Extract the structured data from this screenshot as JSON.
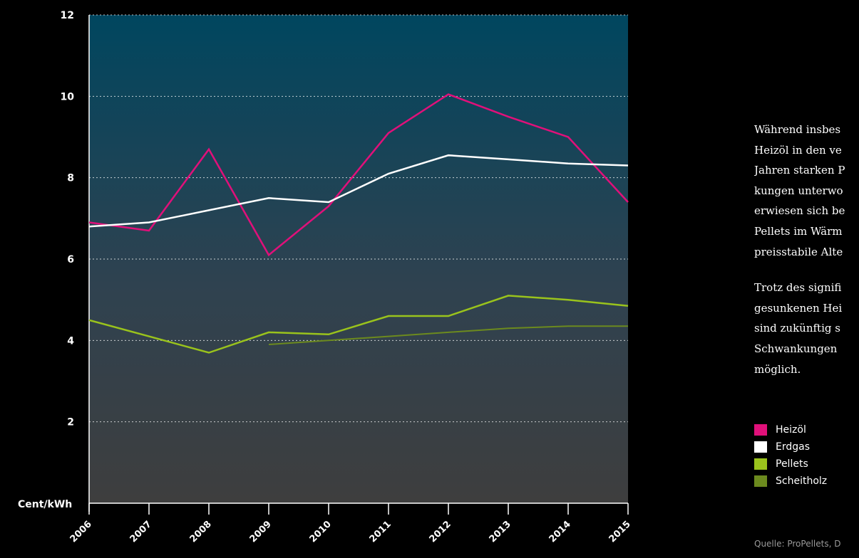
{
  "chart_data": {
    "type": "line",
    "ylabel": "Cent/kWh",
    "ylim": [
      0,
      12
    ],
    "yticks": [
      "2",
      "4",
      "6",
      "8",
      "10",
      "12"
    ],
    "x": [
      "2006",
      "2007",
      "2008",
      "2009",
      "2010",
      "2011",
      "2012",
      "2013",
      "2014",
      "2015"
    ],
    "grid": true,
    "series": [
      {
        "name": "Heizöl",
        "color": "#e0107a",
        "values": [
          6.9,
          6.7,
          8.7,
          6.1,
          7.3,
          9.1,
          10.05,
          9.5,
          9.0,
          7.4
        ]
      },
      {
        "name": "Erdgas",
        "color": "#ffffff",
        "values": [
          6.8,
          6.9,
          7.2,
          7.5,
          7.4,
          8.1,
          8.55,
          8.45,
          8.35,
          8.3
        ]
      },
      {
        "name": "Pellets",
        "color": "#9ac31c",
        "values": [
          4.5,
          4.1,
          3.7,
          4.2,
          4.15,
          4.6,
          4.6,
          5.1,
          5.0,
          4.85
        ]
      },
      {
        "name": "Scheitholz",
        "color": "#6c8a1e",
        "values": [
          null,
          null,
          null,
          3.9,
          4.0,
          4.1,
          4.2,
          4.3,
          4.35,
          4.35
        ]
      }
    ]
  },
  "text": {
    "para1": [
      "Während insbes",
      "Heizöl in den ve",
      "Jahren starken P",
      "kungen unterwo",
      "erwiesen sich be",
      "Pellets im Wärm",
      "preisstabile Alte"
    ],
    "para2": [
      "Trotz des signifi",
      "gesunkenen Hei",
      "sind zukünftig s",
      "Schwankungen",
      "möglich."
    ]
  },
  "source": "Quelle: ProPellets, D"
}
